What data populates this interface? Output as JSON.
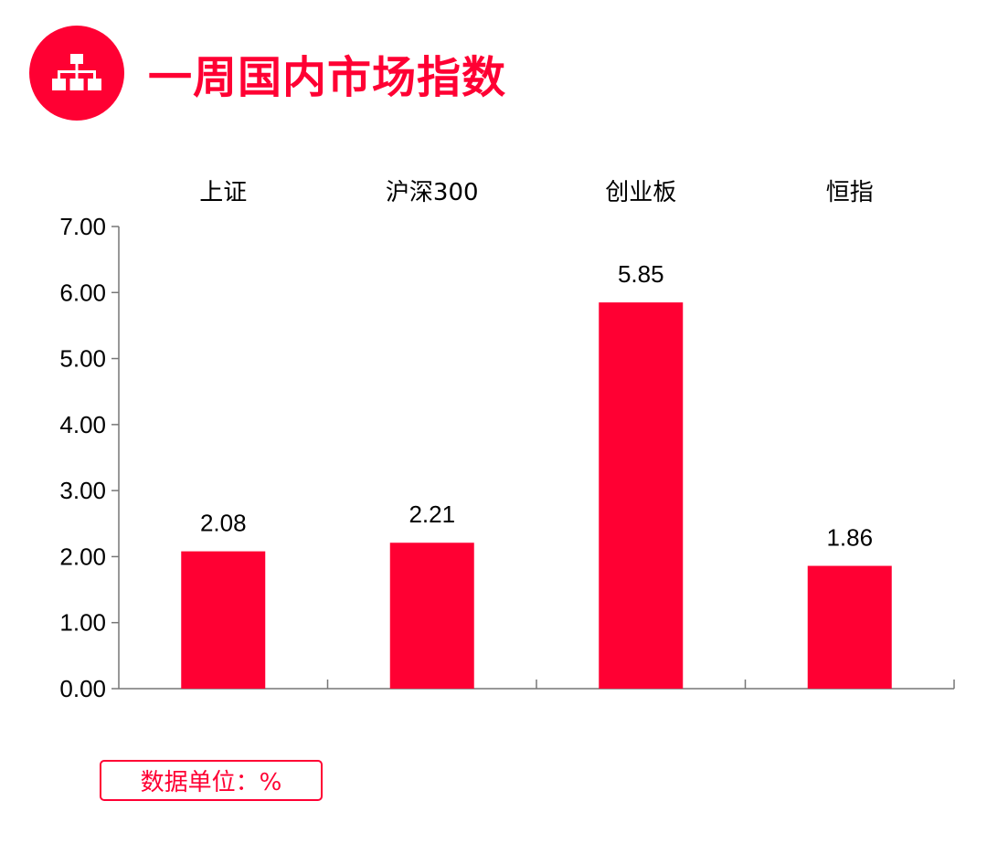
{
  "header": {
    "title": "一周国内市场指数",
    "icon": "hierarchy-icon",
    "accent_color": "#FF0033"
  },
  "chart_data": {
    "type": "bar",
    "categories": [
      "上证",
      "沪深300",
      "创业板",
      "恒指"
    ],
    "values": [
      2.08,
      2.21,
      5.85,
      1.86
    ],
    "value_labels": [
      "2.08",
      "2.21",
      "5.85",
      "1.86"
    ],
    "ylim": [
      0,
      7
    ],
    "yticks": [
      "0.00",
      "1.00",
      "2.00",
      "3.00",
      "4.00",
      "5.00",
      "6.00",
      "7.00"
    ],
    "category_axis_position": "top",
    "bar_color": "#FF0033",
    "grid": false,
    "legend": "none"
  },
  "footer": {
    "unit_label": "数据单位：%"
  }
}
